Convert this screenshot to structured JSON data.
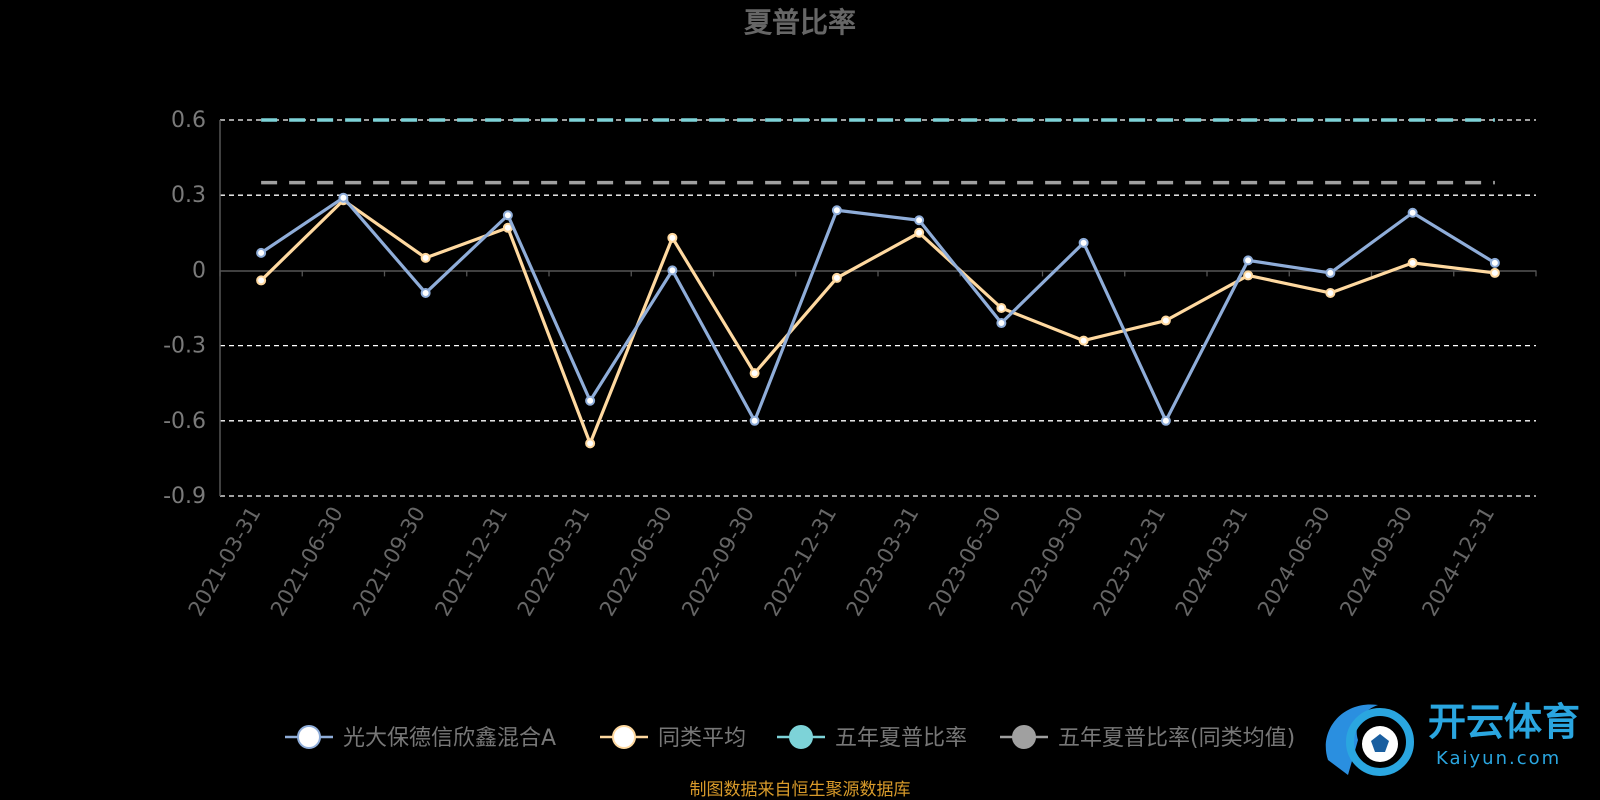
{
  "chart_data": {
    "type": "line",
    "title": "夏普比率",
    "categories": [
      "2021-03-31",
      "2021-06-30",
      "2021-09-30",
      "2021-12-31",
      "2022-03-31",
      "2022-06-30",
      "2022-09-30",
      "2022-12-31",
      "2023-03-31",
      "2023-06-30",
      "2023-09-30",
      "2023-12-31",
      "2024-03-31",
      "2024-06-30",
      "2024-09-30",
      "2024-12-31"
    ],
    "ylim": [
      -0.9,
      0.6
    ],
    "yticks": [
      0.6,
      0.3,
      0,
      -0.3,
      -0.6,
      -0.9
    ],
    "ytick_labels": [
      "0.6",
      "0.3",
      "0",
      "-0.3",
      "-0.6",
      "-0.9"
    ],
    "grid": "horizontal dashed",
    "legend_position": "bottom",
    "series": [
      {
        "name": "光大保德信欣鑫混合A",
        "color": "#8fadd9",
        "marker": "#ffffff",
        "values": [
          0.07,
          0.29,
          -0.09,
          0.22,
          -0.52,
          0.0,
          -0.6,
          0.24,
          0.2,
          -0.21,
          0.11,
          -0.6,
          0.04,
          -0.01,
          0.23,
          0.03
        ]
      },
      {
        "name": "同类平均",
        "color": "#ffd9a0",
        "marker": "#ffffff",
        "values": [
          -0.04,
          0.28,
          0.05,
          0.17,
          -0.69,
          0.13,
          -0.41,
          -0.03,
          0.15,
          -0.15,
          -0.28,
          -0.2,
          -0.02,
          -0.09,
          0.03,
          -0.01
        ]
      },
      {
        "name": "五年夏普比率",
        "color": "#7dd3d8",
        "marker": "#7dd3d8",
        "dashed": true,
        "values": [
          0.6,
          0.6,
          0.6,
          0.6,
          0.6,
          0.6,
          0.6,
          0.6,
          0.6,
          0.6,
          0.6,
          0.6,
          0.6,
          0.6,
          0.6,
          0.6
        ]
      },
      {
        "name": "五年夏普比率(同类均值)",
        "color": "#a0a0a0",
        "marker": "#a0a0a0",
        "dashed": true,
        "values": [
          0.35,
          0.35,
          0.35,
          0.35,
          0.35,
          0.35,
          0.35,
          0.35,
          0.35,
          0.35,
          0.35,
          0.35,
          0.35,
          0.35,
          0.35,
          0.35
        ]
      }
    ]
  },
  "source_text": "制图数据来自恒生聚源数据库",
  "watermark": {
    "main": "开云体育",
    "sub": "Kaiyun.com",
    "icon": "kaiyun-logo-icon"
  }
}
